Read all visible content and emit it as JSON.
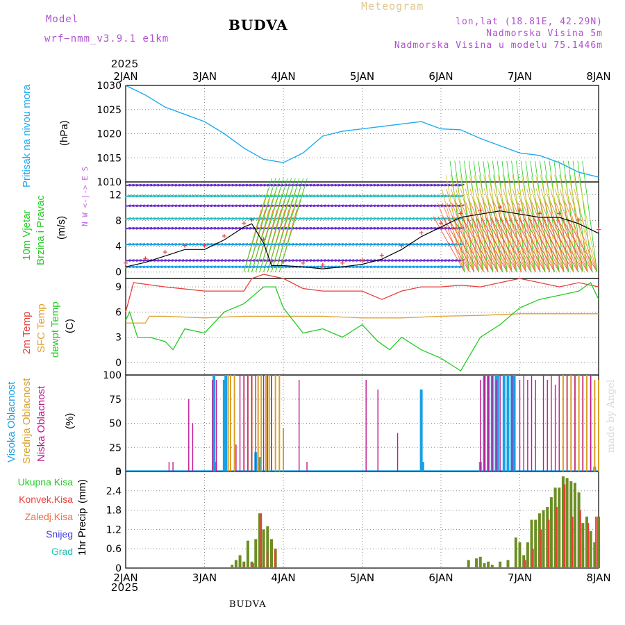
{
  "header": {
    "model_label": "Model",
    "model_name": "wrf−nmm_v3.9.1  e1km",
    "title": "BUDVA",
    "chart_name": "Meteogram",
    "lonlat": "lon,lat (18.81E, 42.29N)",
    "altitude": "Nadmorska Visina 5m",
    "model_altitude": "Nadmorska Visina u modelu 75.1446m",
    "year_top": "2025",
    "year_bottom": "2025",
    "footer": "BUDVA",
    "watermark": "made by Angel"
  },
  "colors": {
    "pressure": "#1eaaf0",
    "temp2m": "#e8403a",
    "sfc_temp": "#e0a030",
    "dewpt": "#22cc22",
    "wind_speed": "#000000",
    "gust": "#e8403a",
    "high_cloud": "#1aa0e6",
    "mid_cloud": "#d8a028",
    "low_cloud": "#c01890",
    "total_precip": "#6b8e23",
    "conv_precip": "#e8403a"
  },
  "chart_data": [
    {
      "type": "line",
      "panel": "pressure",
      "ylabel_main": "Pritisak na nivou mora",
      "ylabel_unit": "(hPa)",
      "ylim": [
        1010,
        1030
      ],
      "yticks": [
        1010,
        1015,
        1020,
        1025,
        1030
      ],
      "xticks": [
        "2JAN",
        "3JAN",
        "4JAN",
        "5JAN",
        "6JAN",
        "7JAN",
        "8JAN"
      ],
      "x_days": [
        0,
        0.25,
        0.5,
        0.75,
        1.0,
        1.25,
        1.5,
        1.75,
        2.0,
        2.25,
        2.5,
        2.75,
        3.0,
        3.25,
        3.5,
        3.75,
        4.0,
        4.25,
        4.5,
        4.75,
        5.0,
        5.25,
        5.5,
        5.75,
        6.0
      ],
      "values": [
        1030,
        1028,
        1025.5,
        1024,
        1022.5,
        1020,
        1017,
        1014.7,
        1014,
        1016,
        1019.5,
        1020.5,
        1021,
        1021.5,
        1022,
        1022.5,
        1021,
        1020.8,
        1019,
        1017.5,
        1016,
        1015.5,
        1014,
        1012,
        1011
      ]
    },
    {
      "type": "line",
      "panel": "wind",
      "ylabel_main": "10m Vjetar",
      "ylabel_sub": "Brzina i Pravac",
      "ylabel_unit": "(m/s)",
      "compass": "N  W <-|-> E  S",
      "ylim": [
        -1,
        14
      ],
      "yticks": [
        0,
        4,
        8,
        12
      ],
      "series": [
        {
          "x_days": [
            0,
            0.25,
            0.5,
            0.75,
            1.0,
            1.25,
            1.5,
            1.6,
            1.75,
            1.85,
            2.0,
            2.25,
            2.5,
            2.75,
            3.0,
            3.25,
            3.5,
            3.75,
            4.0,
            4.25,
            4.5,
            4.75,
            5.0,
            5.25,
            5.5,
            5.75,
            6.0
          ],
          "values": [
            0.8,
            1.5,
            2.5,
            3.5,
            3.5,
            5.0,
            7.0,
            7.5,
            4.5,
            1.0,
            1.0,
            0.8,
            0.5,
            0.8,
            1.2,
            2.0,
            3.5,
            5.5,
            7.0,
            8.5,
            9.0,
            9.5,
            9.0,
            8.5,
            8.5,
            7.5,
            6.0
          ]
        }
      ]
    },
    {
      "type": "line",
      "panel": "temperature",
      "ylabel_parts": [
        "2m Temp",
        "SFC Temp",
        "dewpt Temp"
      ],
      "ylabel_unit": "(C)",
      "ylim": [
        -1.5,
        10
      ],
      "yticks": [
        0,
        3,
        6,
        9
      ],
      "series": [
        {
          "name": "2m Temp",
          "x_days": [
            0,
            0.1,
            0.5,
            1.0,
            1.5,
            1.6,
            1.75,
            2.0,
            2.25,
            2.5,
            2.75,
            3.0,
            3.25,
            3.5,
            3.75,
            4.0,
            4.25,
            4.5,
            4.75,
            5.0,
            5.25,
            5.5,
            5.75,
            6.0
          ],
          "values": [
            6.0,
            9.5,
            9.0,
            8.5,
            8.5,
            10.0,
            10.5,
            10.0,
            8.8,
            8.5,
            8.5,
            8.5,
            7.5,
            8.5,
            9.0,
            9.0,
            9.2,
            9.0,
            9.5,
            10.0,
            9.5,
            9.0,
            9.5,
            9.0
          ]
        },
        {
          "name": "SFC Temp",
          "x_days": [
            0,
            0.25,
            0.3,
            0.5,
            1.0,
            1.5,
            2.0,
            2.5,
            3.0,
            3.5,
            4.0,
            4.5,
            5.0,
            5.5,
            6.0
          ],
          "values": [
            4.7,
            4.7,
            5.5,
            5.5,
            5.3,
            5.5,
            5.5,
            5.5,
            5.3,
            5.3,
            5.5,
            5.6,
            5.8,
            5.8,
            5.8
          ]
        },
        {
          "name": "dewpt Temp",
          "x_days": [
            0,
            0.05,
            0.15,
            0.3,
            0.5,
            0.6,
            0.75,
            1.0,
            1.25,
            1.5,
            1.75,
            1.9,
            2.0,
            2.25,
            2.5,
            2.75,
            3.0,
            3.2,
            3.35,
            3.5,
            3.75,
            4.0,
            4.25,
            4.5,
            4.75,
            5.0,
            5.25,
            5.5,
            5.75,
            5.9,
            6.0
          ],
          "values": [
            5.0,
            6.0,
            3.0,
            3.0,
            2.5,
            1.5,
            4.0,
            3.5,
            6.0,
            7.0,
            9.0,
            9.0,
            6.5,
            3.5,
            4.0,
            3.0,
            4.5,
            2.5,
            1.5,
            3.0,
            1.5,
            0.5,
            -1.0,
            3.0,
            4.5,
            6.5,
            7.5,
            8.0,
            8.5,
            9.5,
            7.5
          ]
        }
      ]
    },
    {
      "type": "bar",
      "panel": "cloud",
      "ylabel_parts": [
        "Visoka Oblacnost",
        "Srednja Oblacnost",
        "Niska Oblacnost"
      ],
      "ylabel_unit": "(%)",
      "ylim": [
        0,
        100
      ],
      "yticks": [
        0,
        25,
        50,
        75,
        100
      ],
      "series": [
        {
          "name": "Visoka Oblacnost",
          "x_days": [
            1.12,
            1.14,
            1.25,
            1.27,
            1.65,
            1.7,
            3.75,
            3.77,
            4.5,
            4.55,
            4.6,
            4.65,
            4.7,
            4.72,
            4.8,
            4.85,
            4.9,
            4.93,
            5.95
          ],
          "values": [
            100,
            10,
            95,
            100,
            20,
            15,
            85,
            10,
            10,
            100,
            100,
            100,
            100,
            100,
            100,
            100,
            100,
            100,
            5
          ]
        },
        {
          "name": "Srednja Oblacnost",
          "x_days": [
            1.3,
            1.33,
            1.38,
            1.5,
            1.55,
            1.6,
            1.68,
            1.72,
            1.78,
            1.82,
            1.85,
            1.9,
            1.95,
            2.0,
            5.55,
            5.6,
            5.65,
            5.7,
            5.75,
            5.8,
            5.85,
            5.9,
            5.95,
            6.0
          ],
          "values": [
            100,
            100,
            100,
            100,
            100,
            100,
            100,
            100,
            100,
            100,
            100,
            100,
            100,
            45,
            100,
            100,
            100,
            100,
            100,
            100,
            100,
            100,
            95,
            95
          ]
        },
        {
          "name": "Niska Oblacnost",
          "x_days": [
            0.55,
            0.6,
            0.8,
            0.85,
            1.1,
            1.15,
            1.4,
            1.45,
            1.5,
            1.55,
            1.6,
            1.65,
            1.75,
            1.8,
            1.85,
            2.2,
            2.3,
            3.05,
            3.2,
            3.45,
            4.5,
            4.55,
            4.6,
            4.65,
            4.7,
            4.75,
            4.9,
            5.0,
            5.05,
            5.1,
            5.15,
            5.2,
            5.3,
            5.35,
            5.4,
            5.45,
            5.5,
            5.6,
            5.7,
            5.8,
            5.9
          ],
          "values": [
            10,
            10,
            75,
            50,
            95,
            95,
            28,
            100,
            100,
            100,
            100,
            100,
            100,
            100,
            100,
            95,
            10,
            95,
            85,
            40,
            95,
            100,
            100,
            100,
            95,
            100,
            100,
            95,
            100,
            95,
            100,
            95,
            100,
            95,
            100,
            90,
            100,
            100,
            100,
            100,
            100
          ]
        }
      ]
    },
    {
      "type": "bar",
      "panel": "precipitation",
      "legend": [
        "Ukupna Kisa",
        "Konvek.Kisa",
        "Zaledj.Kisa",
        "Snijeg",
        "Grad"
      ],
      "ylabel_main": "1hr Precip",
      "ylabel_unit": "(mm)",
      "ylim": [
        0,
        3
      ],
      "yticks": [
        0,
        0.6,
        1.2,
        1.8,
        2.4,
        3
      ],
      "series": [
        {
          "name": "Ukupna Kisa",
          "x_days": [
            1.35,
            1.4,
            1.45,
            1.5,
            1.55,
            1.6,
            1.65,
            1.7,
            1.75,
            1.8,
            1.85,
            1.9,
            4.35,
            4.45,
            4.5,
            4.55,
            4.6,
            4.65,
            4.75,
            4.85,
            4.95,
            5.0,
            5.05,
            5.1,
            5.15,
            5.2,
            5.25,
            5.3,
            5.35,
            5.4,
            5.45,
            5.5,
            5.55,
            5.6,
            5.65,
            5.7,
            5.75,
            5.8,
            5.85,
            5.9,
            5.95,
            6.0
          ],
          "values": [
            0.1,
            0.25,
            0.4,
            0.2,
            0.85,
            0.2,
            0.9,
            1.7,
            1.2,
            1.3,
            0.9,
            0.6,
            0.25,
            0.3,
            0.35,
            0.15,
            0.2,
            0.1,
            0.2,
            0.25,
            0.95,
            0.8,
            0.4,
            0.8,
            1.5,
            1.5,
            1.7,
            1.8,
            1.9,
            2.2,
            2.5,
            2.5,
            2.85,
            2.8,
            2.7,
            2.65,
            2.35,
            1.4,
            1.6,
            1.15,
            0.8,
            1.6
          ]
        },
        {
          "name": "Konvek.Kisa",
          "x_days": [
            1.48,
            1.6,
            1.7,
            1.78,
            1.88,
            5.05,
            5.15,
            5.25,
            5.35,
            5.45,
            5.55,
            5.65,
            5.75,
            5.85,
            5.95
          ],
          "values": [
            0.1,
            0.15,
            1.7,
            0.5,
            0.6,
            0.25,
            0.6,
            1.2,
            1.5,
            1.9,
            2.6,
            1.6,
            1.8,
            1.4,
            1.6
          ]
        }
      ]
    }
  ]
}
